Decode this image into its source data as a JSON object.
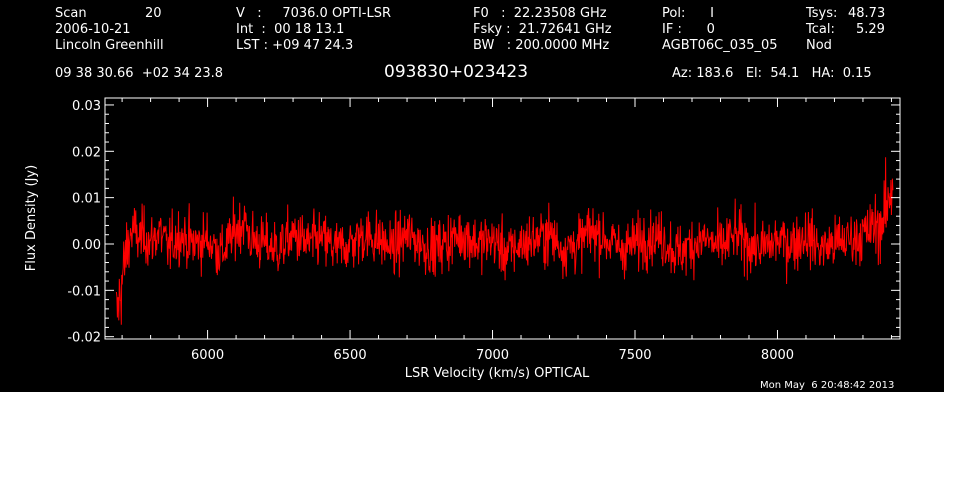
{
  "header": {
    "col1": {
      "scan_label": "Scan",
      "scan_value": "20",
      "date": "2006-10-21",
      "observer": "Lincoln Greenhill"
    },
    "col2": {
      "v_line": "V   :     7036.0 OPTI-LSR",
      "int_line": "Int  :  00 18 13.1",
      "lst_line": "LST : +09 47 24.3"
    },
    "col3": {
      "f0_line": "F0   :  22.23508 GHz",
      "fsky_line": "Fsky :  21.72641 GHz",
      "bw_line": "BW   : 200.0000 MHz"
    },
    "col4": {
      "pol_line": "Pol:      I",
      "if_line": "IF :      0",
      "project": "AGBT06C_035_05"
    },
    "col5": {
      "tsys_label": "Tsys:",
      "tsys_value": "48.73",
      "tcal_label": "Tcal:",
      "tcal_value": "5.29",
      "mode": "Nod"
    }
  },
  "coords": {
    "ra_dec": "09 38 30.66  +02 34 23.8",
    "source": "093830+023423",
    "az_el_ha": "Az: 183.6   El:  54.1   HA:  0.15"
  },
  "timestamp": "Mon May  6 20:48:42 2013",
  "colors": {
    "background": "#000000",
    "axes": "#ffffff",
    "spectrum": "#ff0000"
  },
  "chart_data": {
    "type": "line",
    "xlabel": "LSR Velocity (km/s) OPTICAL",
    "ylabel": "Flux Density (Jy)",
    "xlim": [
      5640,
      8430
    ],
    "ylim": [
      -0.0205,
      0.0315
    ],
    "xticks": [
      6000,
      6500,
      7000,
      7500,
      8000
    ],
    "xtick_labels": [
      "6000",
      "6500",
      "7000",
      "7500",
      "8000"
    ],
    "yticks": [
      -0.02,
      -0.01,
      0.0,
      0.01,
      0.02,
      0.03
    ],
    "ytick_labels": [
      "-0.02",
      "-0.01",
      "0.00",
      "0.01",
      "0.02",
      "0.03"
    ],
    "grid": false,
    "series": [
      {
        "x": [
          5680,
          5690,
          5700,
          5710,
          5720,
          5730,
          5740,
          5760,
          5780,
          5800,
          5830,
          5860,
          5900,
          5950,
          6000,
          6050,
          6100,
          6130,
          6150,
          6200,
          6250,
          6300,
          6350,
          6400,
          6450,
          6500,
          6550,
          6600,
          6650,
          6700,
          6750,
          6800,
          6850,
          6900,
          6950,
          7000,
          7050,
          7100,
          7150,
          7200,
          7250,
          7300,
          7350,
          7400,
          7450,
          7500,
          7550,
          7600,
          7650,
          7700,
          7750,
          7800,
          7850,
          7900,
          7950,
          8000,
          8050,
          8100,
          8150,
          8200,
          8250,
          8300,
          8330,
          8350,
          8370,
          8380,
          8390,
          8400,
          8405
        ],
        "y": [
          -0.016,
          -0.012,
          -0.008,
          -0.004,
          0.0,
          0.002,
          0.003,
          0.001,
          0.002,
          0.0,
          0.003,
          -0.001,
          0.002,
          0.0,
          0.001,
          -0.002,
          0.003,
          0.005,
          0.001,
          0.0,
          -0.001,
          0.002,
          0.0,
          0.001,
          -0.001,
          0.0,
          0.002,
          0.001,
          -0.001,
          0.002,
          0.0,
          -0.001,
          0.001,
          0.002,
          0.0,
          0.001,
          -0.002,
          0.0,
          0.001,
          0.002,
          -0.001,
          0.0,
          0.003,
          0.001,
          -0.001,
          0.0,
          0.002,
          0.001,
          -0.002,
          0.0,
          0.001,
          -0.001,
          0.002,
          0.0,
          -0.001,
          0.001,
          0.0,
          0.002,
          -0.001,
          0.0,
          0.001,
          0.002,
          0.003,
          0.004,
          0.005,
          0.007,
          0.009,
          0.012,
          0.015
        ]
      }
    ]
  }
}
